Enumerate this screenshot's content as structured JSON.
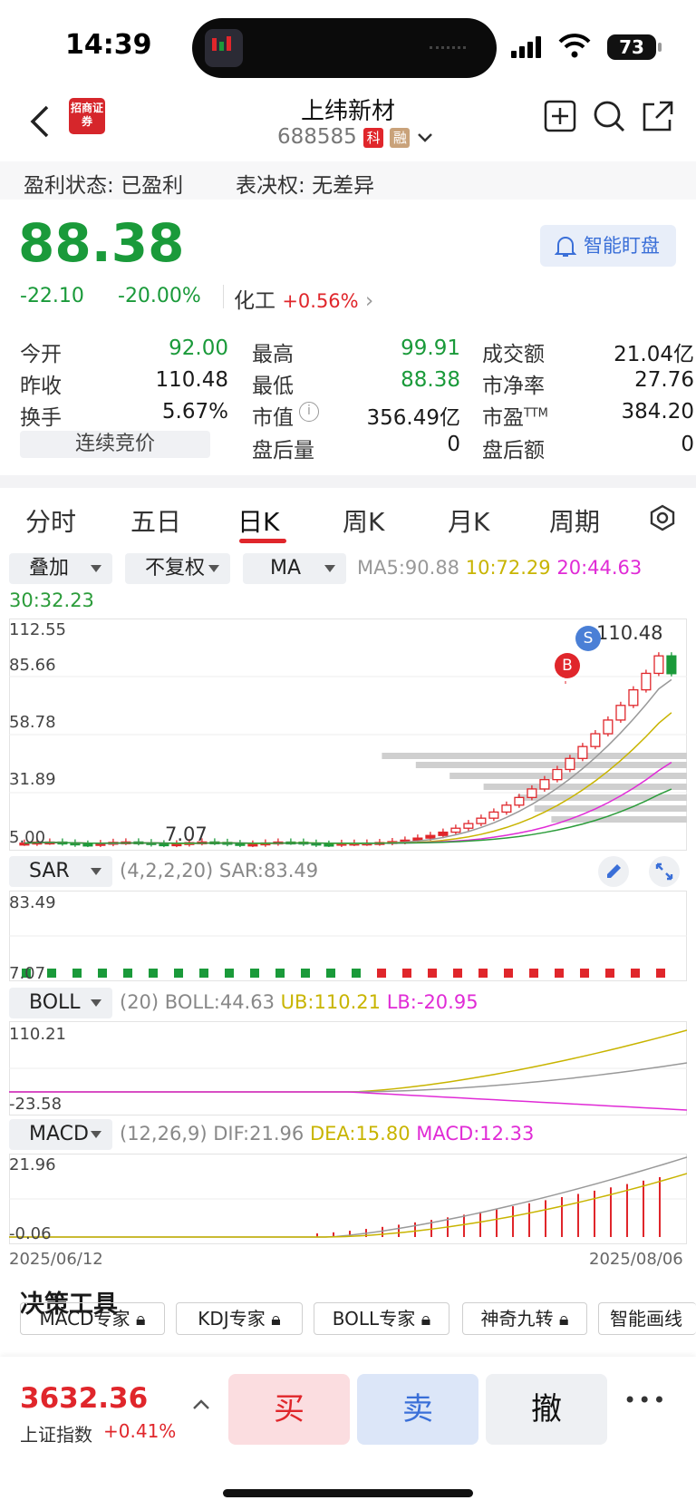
{
  "status": {
    "time": "14:39",
    "battery": "73"
  },
  "header": {
    "title": "上纬新材",
    "code": "688585",
    "tag_ke": "科",
    "tag_rong": "融",
    "broker_logo": "招商证券"
  },
  "info": {
    "profit_label": "盈利状态:",
    "profit_value": "已盈利",
    "vote_label": "表决权:",
    "vote_value": "无差异"
  },
  "quote": {
    "price": "88.38",
    "change": "-22.10",
    "change_pct": "-20.00%",
    "sector": "化工",
    "sector_pct": "+0.56%",
    "watch_button": "智能盯盘",
    "colors": {
      "up": "#e0262b",
      "down": "#1a9a3a"
    }
  },
  "stats": [
    {
      "label": "今开",
      "value": "92.00",
      "dir": "down"
    },
    {
      "label": "最高",
      "value": "99.91",
      "dir": "down"
    },
    {
      "label": "成交额",
      "value": "21.04亿",
      "dir": "none"
    },
    {
      "label": "昨收",
      "value": "110.48",
      "dir": "none"
    },
    {
      "label": "最低",
      "value": "88.38",
      "dir": "down"
    },
    {
      "label": "市净率",
      "value": "27.76",
      "dir": "none"
    },
    {
      "label": "换手",
      "value": "5.67%",
      "dir": "none"
    },
    {
      "label": "市值",
      "value": "356.49亿",
      "dir": "none"
    },
    {
      "label": "市盈TTM",
      "value": "384.20",
      "dir": "none"
    },
    {
      "label": "连续竞价",
      "value": "",
      "dir": "none"
    },
    {
      "label": "盘后量",
      "value": "0",
      "dir": "none"
    },
    {
      "label": "盘后额",
      "value": "0",
      "dir": "none"
    }
  ],
  "tabs": [
    "分时",
    "五日",
    "日K",
    "周K",
    "月K",
    "周期"
  ],
  "active_tab": "日K",
  "controls": {
    "overlay": "叠加",
    "adjust": "不复权",
    "ma": "MA"
  },
  "ma": {
    "ma5": "MA5:90.88",
    "ma10": "10:72.29",
    "ma20": "20:44.63",
    "ma30": "30:32.23"
  },
  "main_axis": [
    "112.55",
    "85.66",
    "58.78",
    "31.89",
    "5.00"
  ],
  "annotations": {
    "high_label": "110.48",
    "low_label": "7.07",
    "buy": "B",
    "sell": "S"
  },
  "sar": {
    "name": "SAR",
    "params": "(4,2,2,20)",
    "value": "SAR:83.49",
    "axis_top": "83.49",
    "axis_bot": "7.07"
  },
  "boll": {
    "name": "BOLL",
    "params": "(20)",
    "boll": "BOLL:44.63",
    "ub": "UB:110.21",
    "lb": "LB:-20.95",
    "axis_top": "110.21",
    "axis_bot": "-23.58"
  },
  "macd": {
    "name": "MACD",
    "params": "(12,26,9)",
    "dif": "DIF:21.96",
    "dea": "DEA:15.80",
    "macd": "MACD:12.33",
    "axis_top": "21.96",
    "axis_bot": "-0.06"
  },
  "dates": {
    "start": "2025/06/12",
    "end": "2025/08/06"
  },
  "tools": {
    "title": "决策工具",
    "items": [
      "MACD专家",
      "KDJ专家",
      "BOLL专家",
      "神奇九转",
      "智能画线"
    ]
  },
  "bottom": {
    "index_value": "3632.36",
    "index_name": "上证指数",
    "index_pct": "+0.41%",
    "buy": "买",
    "sell": "卖",
    "cancel": "撤",
    "more": "•••"
  }
}
